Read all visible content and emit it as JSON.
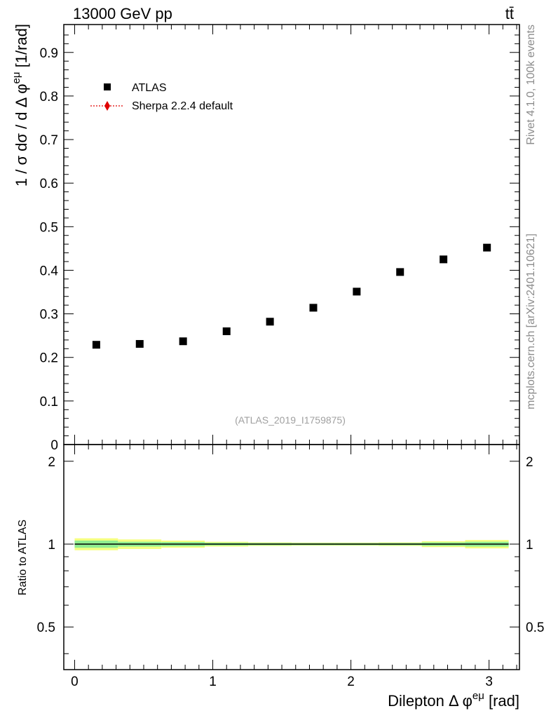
{
  "header": {
    "energy_label": "13000 GeV pp",
    "process_label": "tt̄"
  },
  "side_text": {
    "rivet": "Rivet 4.1.0,  100k events",
    "mcplots": "mcplots.cern.ch [arXiv:2401.10621]"
  },
  "watermark": "(ATLAS_2019_I1759875)",
  "legend": {
    "entries": [
      {
        "label": "ATLAS",
        "marker": "square",
        "color": "#000000"
      },
      {
        "label": "Sherpa 2.2.4 default",
        "marker": "diamond",
        "color": "#e00000"
      }
    ]
  },
  "colors": {
    "data": "#000000",
    "mc": "#e00000",
    "band_inner": "#90ee90",
    "band_outer": "#f5ff80"
  },
  "chart_data": [
    {
      "type": "scatter",
      "panel": "main",
      "ylabel_parts": [
        "1 / σ  dσ / d Δ φ",
        "eμ",
        " [1/rad]"
      ],
      "xlim": [
        -0.0785,
        3.2201
      ],
      "ylim": [
        0,
        0.964
      ],
      "yticks": [
        0,
        0.1,
        0.2,
        0.3,
        0.4,
        0.5,
        0.6,
        0.7,
        0.8,
        0.9
      ],
      "ytick_labels": [
        "0",
        "0.1",
        "0.2",
        "0.3",
        "0.4",
        "0.5",
        "0.6",
        "0.7",
        "0.8",
        "0.9"
      ],
      "series": [
        {
          "name": "ATLAS",
          "x": [
            0.157,
            0.471,
            0.785,
            1.1,
            1.414,
            1.728,
            2.042,
            2.356,
            2.67,
            2.985
          ],
          "y": [
            0.229,
            0.231,
            0.237,
            0.26,
            0.282,
            0.314,
            0.351,
            0.396,
            0.425,
            0.452
          ]
        }
      ]
    },
    {
      "type": "line",
      "panel": "ratio",
      "ylabel": "Ratio to ATLAS",
      "xlabel_parts": [
        "Dilepton Δ φ",
        "eμ",
        " [rad]"
      ],
      "xlim": [
        -0.0785,
        3.2201
      ],
      "ylim": [
        0.35,
        2.3
      ],
      "yticks": [
        0.5,
        1,
        2
      ],
      "ytick_labels": [
        "0.5",
        "1",
        "2"
      ],
      "xticks": [
        0,
        1,
        2,
        3
      ],
      "xtick_labels": [
        "0",
        "1",
        "2",
        "3"
      ],
      "bin_edges": [
        0,
        0.314,
        0.628,
        0.942,
        1.257,
        1.571,
        1.885,
        2.199,
        2.513,
        2.827,
        3.142
      ],
      "band_inner": [
        0.03,
        0.02,
        0.018,
        0.012,
        0.01,
        0.009,
        0.009,
        0.01,
        0.015,
        0.02
      ],
      "band_outer": [
        0.05,
        0.04,
        0.03,
        0.02,
        0.015,
        0.013,
        0.013,
        0.015,
        0.025,
        0.035
      ],
      "reference": 1
    }
  ]
}
